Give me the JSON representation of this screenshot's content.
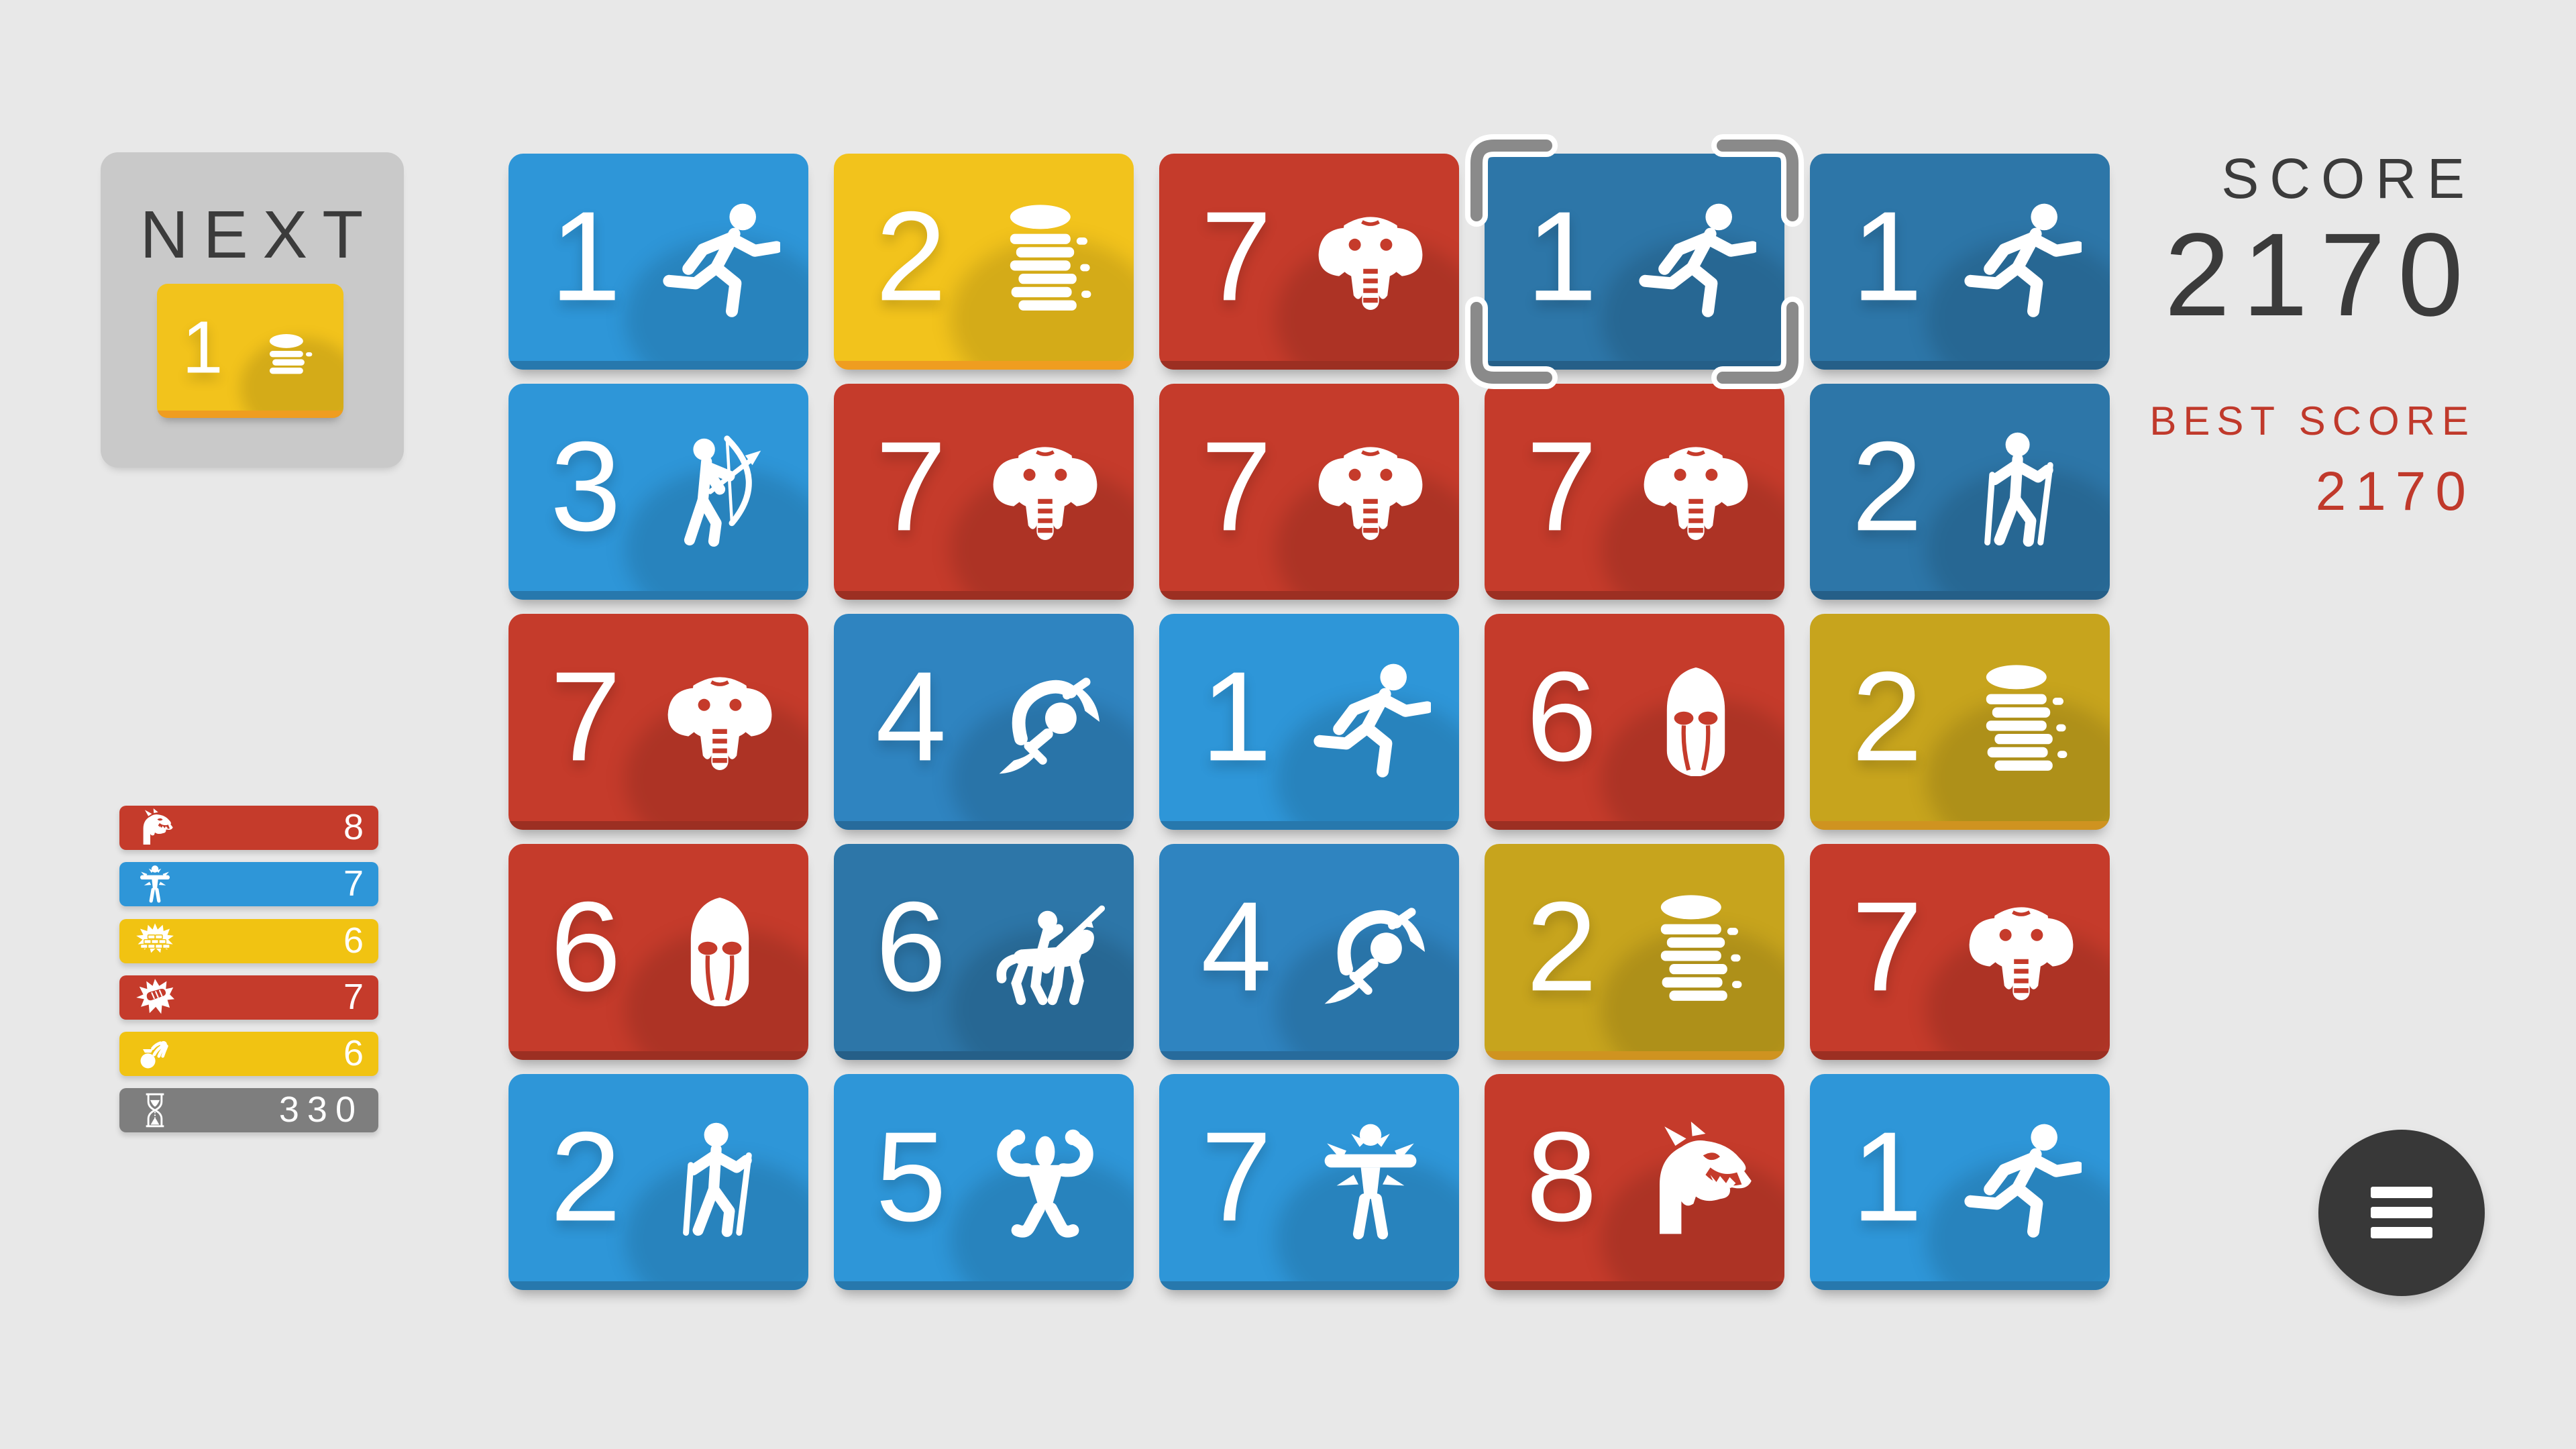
{
  "palette": {
    "page-bg": "#e8e8e8",
    "panel-gray": "#c9c9c9",
    "text-dark": "#3b3b3b",
    "accent-red": "#c0392b",
    "tile-blue": "#2e96d8",
    "tile-blue-edge": "#2778ad",
    "tile-blue-mid": "#2f84c0",
    "tile-blue-mid-edge": "#276b9c",
    "tile-blue-dark": "#2d76a8",
    "tile-blue-dark-edge": "#255f88",
    "tile-red": "#c53b2b",
    "tile-red-edge": "#9c2f22",
    "tile-yellow": "#f2c31c",
    "tile-yellow-edge": "#ef9d20",
    "tile-olive": "#c7a41d",
    "tile-olive-edge": "#cf9320",
    "legend-yellow": "#f1c312",
    "legend-gray": "#7e7e7e",
    "menu-bg": "#383838",
    "bracket-gray": "#8a8a8a"
  },
  "next": {
    "label": "NEXT",
    "tile": {
      "value": "1",
      "icon": "coins-short",
      "color": "yellow"
    }
  },
  "score_panel": {
    "score_label": "SCORE",
    "score_value": "2170",
    "best_label": "BEST SCORE",
    "best_value": "2170"
  },
  "grid": {
    "rows": 5,
    "cols": 5,
    "selected_cell": {
      "row": 0,
      "col": 3
    },
    "tiles": [
      {
        "row": 0,
        "col": 0,
        "value": "1",
        "icon": "runner",
        "color": "blue"
      },
      {
        "row": 0,
        "col": 1,
        "value": "2",
        "icon": "coins-tall",
        "color": "yellow"
      },
      {
        "row": 0,
        "col": 2,
        "value": "7",
        "icon": "elephant",
        "color": "red"
      },
      {
        "row": 0,
        "col": 3,
        "value": "1",
        "icon": "runner",
        "color": "blue-dark",
        "selected": true
      },
      {
        "row": 0,
        "col": 4,
        "value": "1",
        "icon": "runner",
        "color": "blue-dark"
      },
      {
        "row": 1,
        "col": 0,
        "value": "3",
        "icon": "archer",
        "color": "blue"
      },
      {
        "row": 1,
        "col": 1,
        "value": "7",
        "icon": "elephant",
        "color": "red"
      },
      {
        "row": 1,
        "col": 2,
        "value": "7",
        "icon": "elephant",
        "color": "red"
      },
      {
        "row": 1,
        "col": 3,
        "value": "7",
        "icon": "elephant",
        "color": "red"
      },
      {
        "row": 1,
        "col": 4,
        "value": "2",
        "icon": "hiker",
        "color": "blue-dark"
      },
      {
        "row": 2,
        "col": 0,
        "value": "7",
        "icon": "elephant",
        "color": "red"
      },
      {
        "row": 2,
        "col": 1,
        "value": "4",
        "icon": "acrobat",
        "color": "blue-mid"
      },
      {
        "row": 2,
        "col": 2,
        "value": "1",
        "icon": "runner",
        "color": "blue"
      },
      {
        "row": 2,
        "col": 3,
        "value": "6",
        "icon": "helmet",
        "color": "red"
      },
      {
        "row": 2,
        "col": 4,
        "value": "2",
        "icon": "coins-tall",
        "color": "olive"
      },
      {
        "row": 3,
        "col": 0,
        "value": "6",
        "icon": "helmet",
        "color": "red"
      },
      {
        "row": 3,
        "col": 1,
        "value": "6",
        "icon": "knight",
        "color": "blue-dark"
      },
      {
        "row": 3,
        "col": 2,
        "value": "4",
        "icon": "acrobat",
        "color": "blue-mid"
      },
      {
        "row": 3,
        "col": 3,
        "value": "2",
        "icon": "coins-tall",
        "color": "olive"
      },
      {
        "row": 3,
        "col": 4,
        "value": "7",
        "icon": "elephant",
        "color": "red"
      },
      {
        "row": 4,
        "col": 0,
        "value": "2",
        "icon": "hiker",
        "color": "blue"
      },
      {
        "row": 4,
        "col": 1,
        "value": "5",
        "icon": "strongman",
        "color": "blue"
      },
      {
        "row": 4,
        "col": 2,
        "value": "7",
        "icon": "power",
        "color": "blue"
      },
      {
        "row": 4,
        "col": 3,
        "value": "8",
        "icon": "dragon",
        "color": "red"
      },
      {
        "row": 4,
        "col": 4,
        "value": "1",
        "icon": "runner",
        "color": "blue"
      }
    ]
  },
  "legend": [
    {
      "icon": "dragon",
      "color": "red",
      "value": "8"
    },
    {
      "icon": "power",
      "color": "blue",
      "value": "7"
    },
    {
      "icon": "gold-pile",
      "color": "yellow",
      "value": "6"
    },
    {
      "icon": "fist",
      "color": "red",
      "value": "7"
    },
    {
      "icon": "money-bag",
      "color": "yellow",
      "value": "6"
    },
    {
      "icon": "hourglass",
      "color": "gray",
      "value": "330"
    }
  ],
  "menu_button": {
    "icon": "hamburger-menu"
  }
}
